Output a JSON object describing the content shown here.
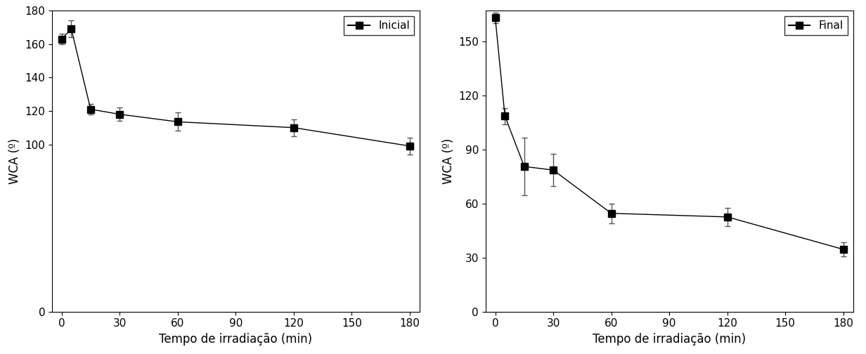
{
  "chart_data": [
    {
      "type": "line",
      "x": [
        0,
        5,
        15,
        30,
        60,
        120,
        180
      ],
      "series": [
        {
          "name": "Inicial",
          "color": "#000000",
          "marker": "square",
          "line_style": "solid",
          "values": [
            163,
            169,
            121,
            118,
            113.5,
            110,
            99
          ],
          "error": [
            3,
            5,
            3,
            4,
            5.5,
            5,
            5
          ]
        }
      ],
      "xlabel": "Tempo de irradiação (min)",
      "ylabel": "WCA (º)",
      "xlim": [
        -5,
        185
      ],
      "xticks": [
        0,
        30,
        60,
        90,
        120,
        150,
        180
      ],
      "ylim": [
        0,
        180
      ],
      "yticks": [
        0,
        100,
        120,
        140,
        160,
        180
      ],
      "legend": "upper right"
    },
    {
      "type": "line",
      "x": [
        0,
        5,
        15,
        30,
        60,
        120,
        180
      ],
      "series": [
        {
          "name": "Final",
          "color": "#000000",
          "marker": "square",
          "line_style": "solid",
          "values": [
            163,
            108.5,
            80.5,
            78.5,
            54.5,
            52.5,
            34.5
          ],
          "error": [
            3,
            4.5,
            16,
            9,
            5.5,
            5,
            4
          ]
        }
      ],
      "xlabel": "Tempo de irradiação (min)",
      "ylabel": "WCA (º)",
      "xlim": [
        -5,
        185
      ],
      "xticks": [
        0,
        30,
        60,
        90,
        120,
        150,
        180
      ],
      "ylim": [
        0,
        167
      ],
      "yticks": [
        0,
        30,
        60,
        90,
        120,
        150
      ],
      "legend": "upper right"
    }
  ]
}
